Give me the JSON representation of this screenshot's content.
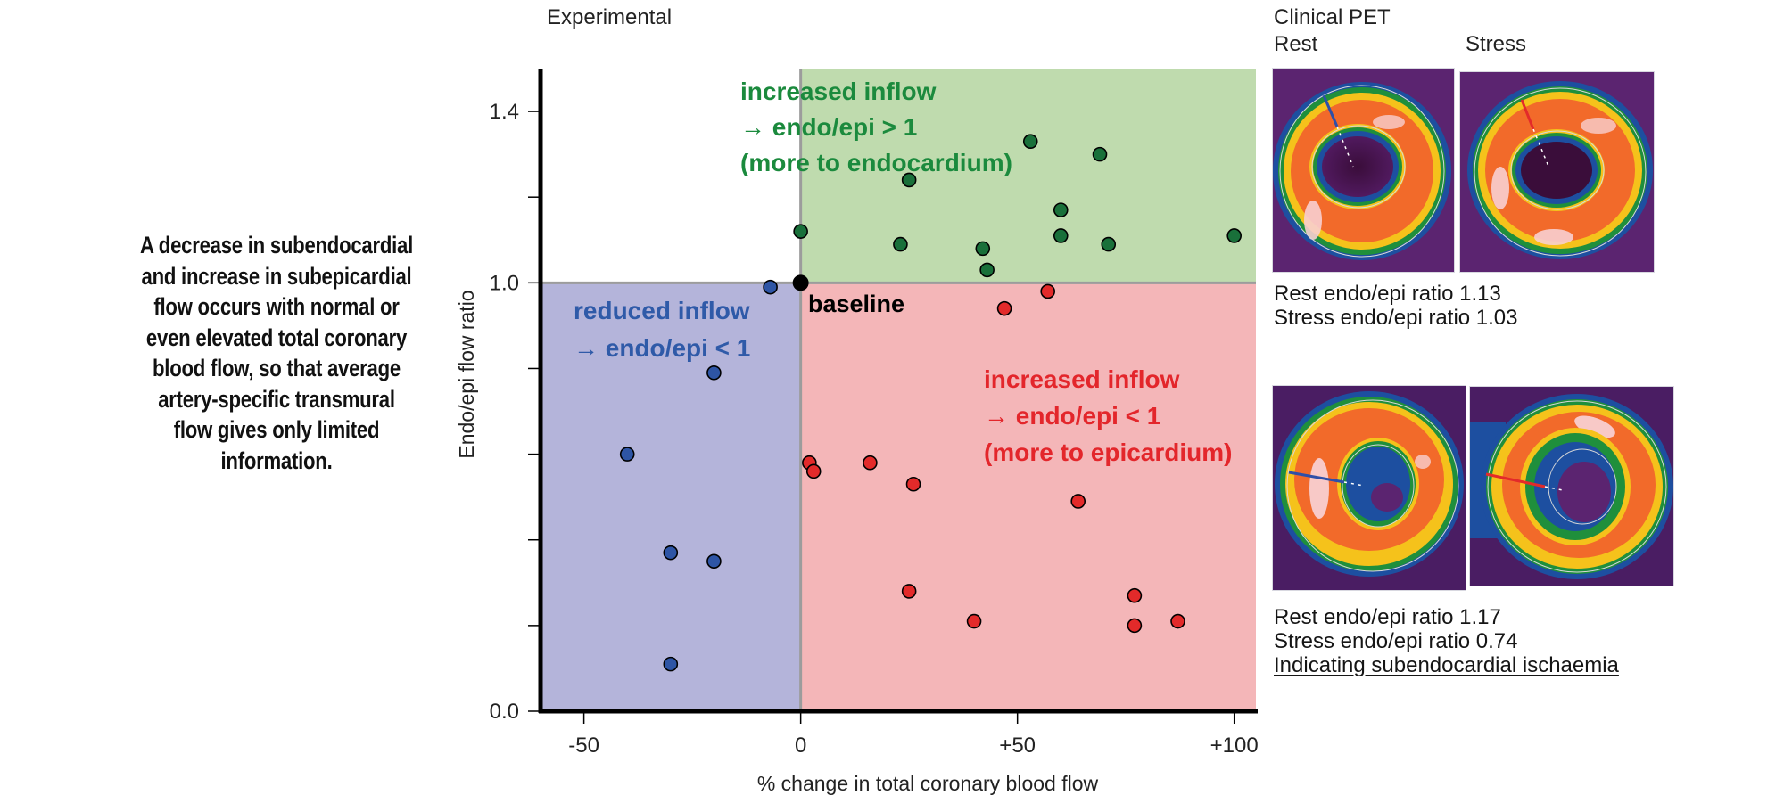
{
  "left_caption": [
    "A decrease in subendocardial",
    "and increase in subepicardial",
    "flow occurs with normal or",
    "even elevated total coronary",
    "blood flow, so that average",
    "artery-specific transmural",
    "flow gives only limited",
    "information."
  ],
  "experimental_title": "Experimental",
  "clinical": {
    "title": "Clinical PET",
    "rest_label": "Rest",
    "stress_label": "Stress",
    "case1": {
      "lines": [
        "Rest endo/epi ratio 1.13",
        "Stress endo/epi ratio 1.03"
      ],
      "rest_ratio": 1.13,
      "stress_ratio": 1.03,
      "rest_marker_color": "#2e4fa8",
      "stress_marker_color": "#e32a2a"
    },
    "case2": {
      "lines": [
        "Rest endo/epi ratio 1.17",
        "Stress endo/epi ratio 0.74"
      ],
      "conclusion": "Indicating subendocardial ischaemia",
      "rest_ratio": 1.17,
      "stress_ratio": 0.74,
      "rest_marker_color": "#2e4fa8",
      "stress_marker_color": "#e32a2a"
    }
  },
  "chart_data": {
    "type": "scatter",
    "title": "Experimental",
    "xlabel": "% change in total coronary blood flow",
    "ylabel": "Endo/epi flow ratio",
    "xlim": [
      -60,
      105
    ],
    "ylim": [
      0.0,
      1.5
    ],
    "x_ticks": [
      {
        "value": -50,
        "label": "-50"
      },
      {
        "value": 0,
        "label": "0"
      },
      {
        "value": 50,
        "label": "+50"
      },
      {
        "value": 100,
        "label": "+100"
      }
    ],
    "y_ticks": [
      {
        "value": 1.4,
        "label": "1.4"
      },
      {
        "value": 1.2,
        "label": ""
      },
      {
        "value": 1.0,
        "label": "1.0"
      },
      {
        "value": 0.8,
        "label": ""
      },
      {
        "value": 0.6,
        "label": ""
      },
      {
        "value": 0.4,
        "label": ""
      },
      {
        "value": 0.2,
        "label": ""
      },
      {
        "value": 0.0,
        "label": "0.0"
      }
    ],
    "grid": false,
    "regions": [
      {
        "name": "reduced-inflow",
        "x": [
          -60,
          0
        ],
        "y": [
          0.0,
          1.0
        ],
        "color": "#b4b4da"
      },
      {
        "name": "increased-inflow-endo",
        "x": [
          0,
          105
        ],
        "y": [
          1.0,
          1.5
        ],
        "color": "#bfdbae"
      },
      {
        "name": "increased-inflow-epi",
        "x": [
          0,
          105
        ],
        "y": [
          0.0,
          1.0
        ],
        "color": "#f4b6b8"
      }
    ],
    "annotations": [
      {
        "name": "green-annotation",
        "color": "#1b8a3d",
        "lines": [
          "increased inflow",
          "→ endo/epi > 1",
          "(more to endocardium)"
        ]
      },
      {
        "name": "blue-annotation",
        "color": "#2f5aa8",
        "lines": [
          "reduced inflow",
          "→ endo/epi < 1"
        ]
      },
      {
        "name": "red-annotation",
        "color": "#e3262b",
        "lines": [
          "increased inflow",
          "→ endo/epi < 1",
          "(more to epicardium)"
        ]
      },
      {
        "name": "baseline-annotation",
        "color": "#000000",
        "lines": [
          "baseline"
        ]
      }
    ],
    "series": [
      {
        "name": "baseline",
        "color": "#000000",
        "points": [
          [
            0,
            1.0
          ]
        ]
      },
      {
        "name": "reduced inflow",
        "color": "#2e55a5",
        "points": [
          [
            -7,
            0.99
          ],
          [
            -20,
            0.79
          ],
          [
            -40,
            0.6
          ],
          [
            -30,
            0.37
          ],
          [
            -20,
            0.35
          ],
          [
            -30,
            0.11
          ]
        ]
      },
      {
        "name": "increased inflow, endo/epi > 1",
        "color": "#19703a",
        "points": [
          [
            0,
            1.12
          ],
          [
            25,
            1.24
          ],
          [
            23,
            1.09
          ],
          [
            53,
            1.33
          ],
          [
            69,
            1.3
          ],
          [
            60,
            1.17
          ],
          [
            60,
            1.11
          ],
          [
            42,
            1.08
          ],
          [
            43,
            1.03
          ],
          [
            71,
            1.09
          ],
          [
            100,
            1.11
          ]
        ]
      },
      {
        "name": "increased inflow, endo/epi < 1",
        "color": "#e32a2a",
        "points": [
          [
            57,
            0.98
          ],
          [
            47,
            0.94
          ],
          [
            2,
            0.58
          ],
          [
            3,
            0.56
          ],
          [
            16,
            0.58
          ],
          [
            26,
            0.53
          ],
          [
            64,
            0.49
          ],
          [
            25,
            0.28
          ],
          [
            77,
            0.27
          ],
          [
            40,
            0.21
          ],
          [
            77,
            0.2
          ],
          [
            87,
            0.21
          ]
        ]
      }
    ]
  }
}
